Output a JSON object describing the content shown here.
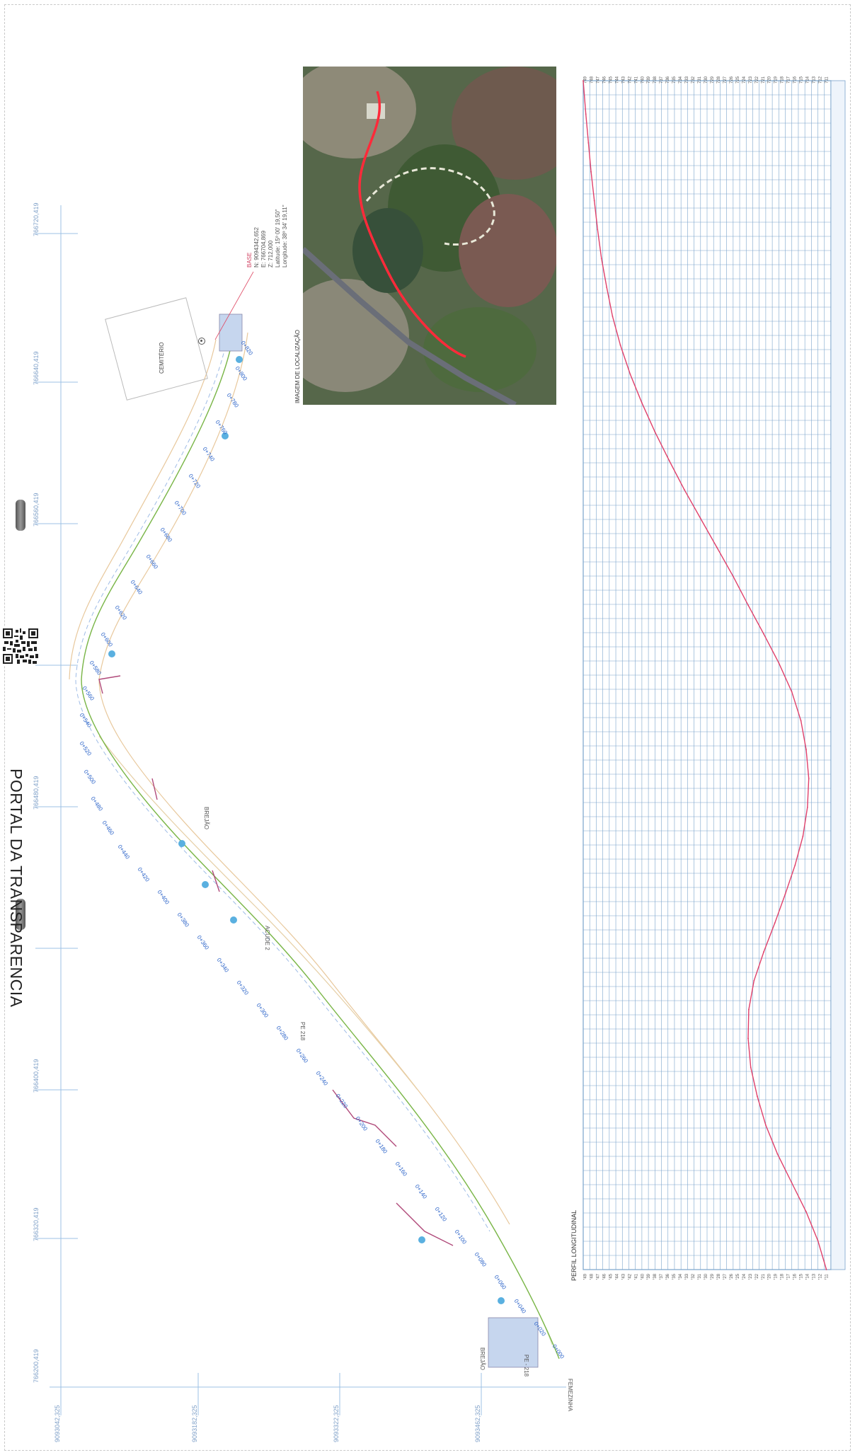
{
  "page": {
    "portal_label": "PORTAL DA TRANSPARENCIA"
  },
  "plan": {
    "cemetery_label": "CEMITÉRIO",
    "base_label": "BASE",
    "base_coords": [
      "N: 9094342,652",
      "E: 766704,869",
      "Z: 712,000",
      "Latitude: 15º 00' 19,50\"",
      "Longitude: 38º 34' 19,11\""
    ],
    "road_labels": [
      "PE - 218",
      "PE 218"
    ],
    "stream_labels": [
      "BREJÃO",
      "BREJÃO",
      "ACUDE 2"
    ],
    "place_label": "FEMEZINHA",
    "coord_top": [
      "766200,419",
      "766320,419",
      "766400,419",
      "766480,419",
      "766560,419",
      "766640,419",
      "766720,419"
    ],
    "coord_bottom": [
      "9093042,325",
      "9093182,325",
      "9093322,325",
      "9093462,325"
    ],
    "stations": [
      "0+000",
      "0+020",
      "0+040",
      "0+060",
      "0+080",
      "0+100",
      "0+120",
      "0+140",
      "0+160",
      "0+180",
      "0+200",
      "0+220",
      "0+240",
      "0+260",
      "0+280",
      "0+300",
      "0+320",
      "0+340",
      "0+360",
      "0+380",
      "0+400",
      "0+420",
      "0+440",
      "0+460",
      "0+480",
      "0+500",
      "0+520",
      "0+540",
      "0+560",
      "0+580",
      "0+600",
      "0+620",
      "0+640",
      "0+660",
      "0+680",
      "0+700",
      "0+720",
      "0+740",
      "0+760",
      "0+780",
      "0+800",
      "0+820"
    ]
  },
  "aerial": {
    "caption": "IMAGEM DE LOCALIZAÇÃO",
    "colors": {
      "route": "#ff2a3a",
      "track": "#e8e8d8",
      "road": "#6a6e78"
    }
  },
  "profile": {
    "title": "PERFIL LONGITUDINAL",
    "colors": {
      "grid": "#7aa4cc",
      "line": "#e0406a"
    },
    "elevation_ticks": [
      "749",
      "748",
      "747",
      "746",
      "745",
      "744",
      "743",
      "742",
      "741",
      "740",
      "739",
      "738",
      "737",
      "736",
      "735",
      "734",
      "733",
      "732",
      "731",
      "730",
      "729",
      "728",
      "727",
      "726",
      "725",
      "724",
      "723",
      "722",
      "721",
      "720",
      "719",
      "718",
      "717",
      "716",
      "715",
      "714",
      "713",
      "712",
      "711"
    ],
    "chart_data": {
      "type": "line",
      "title": "PERFIL LONGITUDINAL",
      "x": [
        0,
        20,
        40,
        60,
        80,
        100,
        120,
        140,
        160,
        180,
        200,
        220,
        240,
        260,
        280,
        300,
        320,
        340,
        360,
        380,
        400,
        420,
        440,
        460,
        480,
        500,
        520,
        540,
        560,
        580,
        600,
        620,
        640,
        660,
        680,
        700,
        720,
        740,
        760,
        780,
        800,
        823.08
      ],
      "y": [
        711.7,
        713.0,
        714.8,
        717.0,
        719.2,
        721.0,
        722.3,
        723.3,
        723.7,
        723.6,
        722.8,
        721.3,
        719.6,
        718.0,
        716.5,
        715.3,
        714.6,
        714.4,
        714.8,
        715.6,
        717.0,
        719.0,
        721.3,
        723.7,
        726.0,
        728.5,
        731.0,
        733.5,
        735.8,
        738.0,
        740.0,
        741.8,
        743.3,
        744.5,
        745.4,
        746.2,
        746.8,
        747.3,
        747.8,
        748.2,
        748.6,
        749.0
      ],
      "xlabel": "",
      "ylabel": "",
      "ylim": [
        711,
        749
      ],
      "xlim": [
        0,
        823.08
      ]
    }
  }
}
